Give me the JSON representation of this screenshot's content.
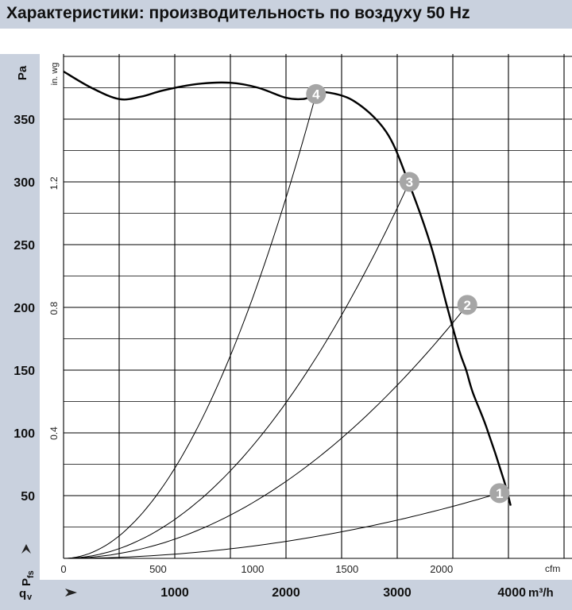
{
  "title": "Характеристики: производительность по воздуху 50 Hz",
  "chart_data": {
    "type": "line",
    "y_pa_label": "Pa",
    "y_inwg_label": "in. wg",
    "pfs_label": "P",
    "pfs_sub": "fs",
    "qv_label": "q",
    "qv_sub": "v",
    "cfm_unit": "cfm",
    "m3h_unit": "m³/h",
    "y_pa_ticks": [
      {
        "value": 50,
        "label": "50"
      },
      {
        "value": 100,
        "label": "100"
      },
      {
        "value": 150,
        "label": "150"
      },
      {
        "value": 200,
        "label": "200"
      },
      {
        "value": 250,
        "label": "250"
      },
      {
        "value": 300,
        "label": "300"
      },
      {
        "value": 350,
        "label": "350"
      }
    ],
    "y_inwg_ticks": [
      {
        "value": 0.4,
        "label": "0.4"
      },
      {
        "value": 0.8,
        "label": "0.8"
      },
      {
        "value": 1.2,
        "label": "1.2"
      }
    ],
    "x_cfm_ticks": [
      {
        "value": 0,
        "label": "0"
      },
      {
        "value": 500,
        "label": "500"
      },
      {
        "value": 1000,
        "label": "1000"
      },
      {
        "value": 1500,
        "label": "1500"
      },
      {
        "value": 2000,
        "label": "2000"
      }
    ],
    "x_m3h_ticks": [
      {
        "value": 1000,
        "label": "1000"
      },
      {
        "value": 2000,
        "label": "2000"
      },
      {
        "value": 3000,
        "label": "3000"
      },
      {
        "value": 4000,
        "label": "4000"
      }
    ],
    "xlim_m3h": [
      0,
      4400
    ],
    "ylim_pa": [
      0,
      390
    ],
    "grid": true,
    "fan_curve": {
      "q_m3h": [
        0,
        250,
        500,
        700,
        900,
        1200,
        1500,
        1750,
        2000,
        2150,
        2220,
        2300,
        2600,
        2900,
        3100,
        3300,
        3450,
        3560,
        3620,
        3680,
        3800,
        3960,
        4020
      ],
      "p_pa": [
        388,
        375,
        366,
        368,
        373,
        378,
        379,
        375,
        367,
        366,
        368,
        372,
        365,
        340,
        300,
        250,
        200,
        165,
        150,
        132,
        105,
        62,
        42
      ]
    },
    "system_curves": [
      {
        "label": "1",
        "q_m3h": 3920,
        "p_pa": 52
      },
      {
        "label": "2",
        "q_m3h": 3630,
        "p_pa": 202
      },
      {
        "label": "3",
        "q_m3h": 3110,
        "p_pa": 300
      },
      {
        "label": "4",
        "q_m3h": 2270,
        "p_pa": 370
      }
    ]
  }
}
